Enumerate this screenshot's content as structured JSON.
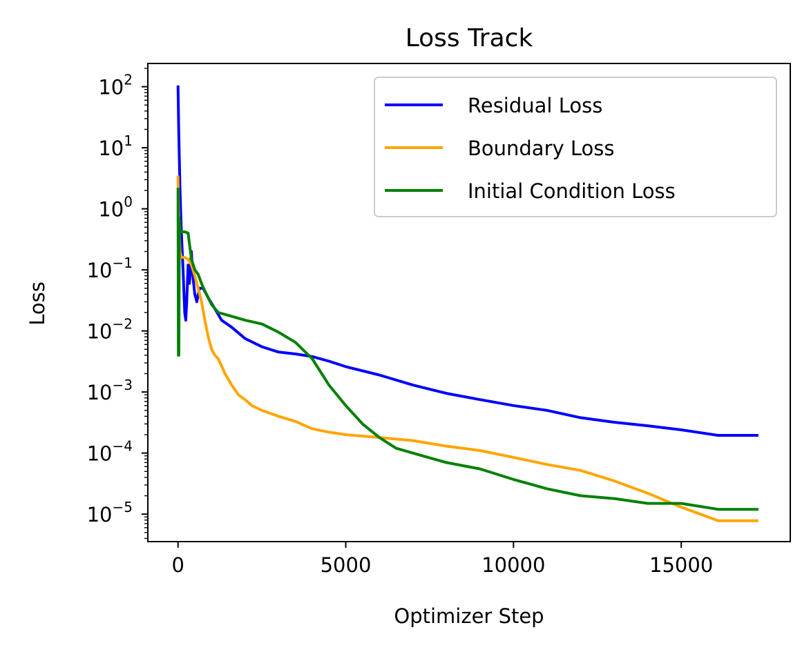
{
  "chart_data": {
    "type": "line",
    "title": "Loss Track",
    "xlabel": "Optimizer Step",
    "ylabel": "Loss",
    "yscale": "log",
    "xlim": [
      -900,
      18250
    ],
    "ylim_log10": [
      -5.45,
      2.38
    ],
    "legend_position": "top-right",
    "x_ticks": [
      {
        "value": 0,
        "label": "0"
      },
      {
        "value": 5000,
        "label": "5000"
      },
      {
        "value": 10000,
        "label": "10000"
      },
      {
        "value": 15000,
        "label": "15000"
      }
    ],
    "y_ticks": [
      {
        "exp": 2,
        "base": "10",
        "sup": "2"
      },
      {
        "exp": 1,
        "base": "10",
        "sup": "1"
      },
      {
        "exp": 0,
        "base": "10",
        "sup": "0"
      },
      {
        "exp": -1,
        "base": "10",
        "sup": "−1"
      },
      {
        "exp": -2,
        "base": "10",
        "sup": "−2"
      },
      {
        "exp": -3,
        "base": "10",
        "sup": "−3"
      },
      {
        "exp": -4,
        "base": "10",
        "sup": "−4"
      },
      {
        "exp": -5,
        "base": "10",
        "sup": "−5"
      }
    ],
    "series": [
      {
        "name": "Residual Loss",
        "color": "#0000ff",
        "points": [
          [
            0,
            105
          ],
          [
            20,
            20
          ],
          [
            60,
            2
          ],
          [
            100,
            0.4
          ],
          [
            150,
            0.1
          ],
          [
            200,
            0.02
          ],
          [
            230,
            0.015
          ],
          [
            260,
            0.03
          ],
          [
            300,
            0.12
          ],
          [
            340,
            0.06
          ],
          [
            400,
            0.2
          ],
          [
            440,
            0.08
          ],
          [
            500,
            0.04
          ],
          [
            560,
            0.03
          ],
          [
            640,
            0.05
          ],
          [
            750,
            0.05
          ],
          [
            900,
            0.035
          ],
          [
            1100,
            0.023
          ],
          [
            1300,
            0.015
          ],
          [
            1600,
            0.0115
          ],
          [
            2000,
            0.0075
          ],
          [
            2500,
            0.0055
          ],
          [
            3000,
            0.0045
          ],
          [
            3500,
            0.0042
          ],
          [
            4000,
            0.0038
          ],
          [
            4500,
            0.0032
          ],
          [
            5000,
            0.0026
          ],
          [
            6000,
            0.0019
          ],
          [
            7000,
            0.0013
          ],
          [
            8000,
            0.00095
          ],
          [
            9000,
            0.00075
          ],
          [
            10000,
            0.0006
          ],
          [
            11000,
            0.0005
          ],
          [
            12000,
            0.00038
          ],
          [
            13000,
            0.00032
          ],
          [
            14000,
            0.00028
          ],
          [
            15000,
            0.00024
          ],
          [
            16100,
            0.000195
          ],
          [
            17300,
            0.000195
          ]
        ]
      },
      {
        "name": "Boundary Loss",
        "color": "#ffa500",
        "points": [
          [
            0,
            3.5
          ],
          [
            15,
            1.0
          ],
          [
            30,
            0.5
          ],
          [
            60,
            0.2
          ],
          [
            100,
            0.16
          ],
          [
            200,
            0.16
          ],
          [
            300,
            0.15
          ],
          [
            400,
            0.12
          ],
          [
            500,
            0.08
          ],
          [
            600,
            0.05
          ],
          [
            700,
            0.03
          ],
          [
            800,
            0.015
          ],
          [
            900,
            0.008
          ],
          [
            1000,
            0.005
          ],
          [
            1100,
            0.004
          ],
          [
            1200,
            0.0035
          ],
          [
            1400,
            0.002
          ],
          [
            1600,
            0.0013
          ],
          [
            1800,
            0.0009
          ],
          [
            2000,
            0.00075
          ],
          [
            2200,
            0.0006
          ],
          [
            2500,
            0.0005
          ],
          [
            3000,
            0.0004
          ],
          [
            3500,
            0.00033
          ],
          [
            4000,
            0.00025
          ],
          [
            4500,
            0.00022
          ],
          [
            5000,
            0.0002
          ],
          [
            6000,
            0.00018
          ],
          [
            7000,
            0.00016
          ],
          [
            8000,
            0.00013
          ],
          [
            9000,
            0.00011
          ],
          [
            10000,
            8.5e-05
          ],
          [
            11000,
            6.5e-05
          ],
          [
            12000,
            5.2e-05
          ],
          [
            13000,
            3.5e-05
          ],
          [
            14000,
            2.2e-05
          ],
          [
            15000,
            1.3e-05
          ],
          [
            16100,
            7.8e-06
          ],
          [
            17300,
            7.8e-06
          ]
        ]
      },
      {
        "name": "Initial Condition Loss",
        "color": "#008000",
        "points": [
          [
            0,
            2.2
          ],
          [
            10,
            0.004
          ],
          [
            25,
            0.004
          ],
          [
            40,
            0.7
          ],
          [
            60,
            0.45
          ],
          [
            100,
            0.42
          ],
          [
            200,
            0.42
          ],
          [
            300,
            0.4
          ],
          [
            400,
            0.15
          ],
          [
            500,
            0.1
          ],
          [
            600,
            0.085
          ],
          [
            700,
            0.06
          ],
          [
            800,
            0.045
          ],
          [
            900,
            0.035
          ],
          [
            1000,
            0.027
          ],
          [
            1200,
            0.02
          ],
          [
            1500,
            0.018
          ],
          [
            2000,
            0.015
          ],
          [
            2500,
            0.013
          ],
          [
            3000,
            0.0095
          ],
          [
            3500,
            0.0065
          ],
          [
            4000,
            0.0035
          ],
          [
            4500,
            0.0013
          ],
          [
            5000,
            0.0006
          ],
          [
            5500,
            0.0003
          ],
          [
            6000,
            0.00018
          ],
          [
            6500,
            0.00012
          ],
          [
            7000,
            0.0001
          ],
          [
            8000,
            7e-05
          ],
          [
            9000,
            5.5e-05
          ],
          [
            10000,
            3.7e-05
          ],
          [
            11000,
            2.6e-05
          ],
          [
            12000,
            2e-05
          ],
          [
            13000,
            1.8e-05
          ],
          [
            14000,
            1.5e-05
          ],
          [
            15000,
            1.5e-05
          ],
          [
            16100,
            1.2e-05
          ],
          [
            17300,
            1.2e-05
          ]
        ]
      }
    ]
  }
}
